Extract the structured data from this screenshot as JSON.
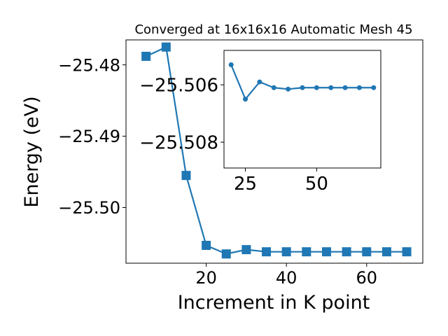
{
  "chart_data": [
    {
      "type": "line",
      "title": "Converged at 16x16x16 Automatic Mesh 45",
      "xlabel": "Increment in K point",
      "ylabel": "Energy (eV)",
      "xlim": [
        0,
        74
      ],
      "ylim": [
        -25.5078,
        -25.4765
      ],
      "xticks": [
        20,
        40,
        60
      ],
      "yticks": [
        -25.48,
        -25.49,
        -25.5
      ],
      "xtick_labels": [
        "20",
        "40",
        "60"
      ],
      "ytick_labels": [
        "−25.48",
        "−25.49",
        "−25.50"
      ],
      "marker": "square",
      "color": "#1f77b4",
      "series": [
        {
          "x": [
            5,
            10,
            15,
            20,
            25,
            30,
            35,
            40,
            45,
            50,
            55,
            60,
            65,
            70
          ],
          "values": [
            -25.4788,
            -25.4775,
            -25.4955,
            -25.5053,
            -25.5065,
            -25.5059,
            -25.5062,
            -25.5062,
            -25.5062,
            -25.5062,
            -25.5062,
            -25.5062,
            -25.5062,
            -25.5062
          ]
        }
      ]
    },
    {
      "type": "line",
      "title": "",
      "xlabel": "",
      "ylabel": "",
      "xlim": [
        17.5,
        72.5
      ],
      "ylim": [
        -25.5089,
        -25.5048
      ],
      "xticks": [
        25,
        50
      ],
      "yticks": [
        -25.508,
        -25.506
      ],
      "xtick_labels": [
        "25",
        "50"
      ],
      "ytick_labels": [
        "−25.508",
        "−25.506"
      ],
      "marker": "circle",
      "color": "#1f77b4",
      "series": [
        {
          "x": [
            20,
            25,
            30,
            35,
            40,
            45,
            50,
            55,
            60,
            65,
            70
          ],
          "values": [
            -25.5053,
            -25.5065,
            -25.5059,
            -25.5061,
            -25.50615,
            -25.5061,
            -25.5061,
            -25.5061,
            -25.5061,
            -25.5061,
            -25.5061
          ]
        }
      ]
    }
  ]
}
